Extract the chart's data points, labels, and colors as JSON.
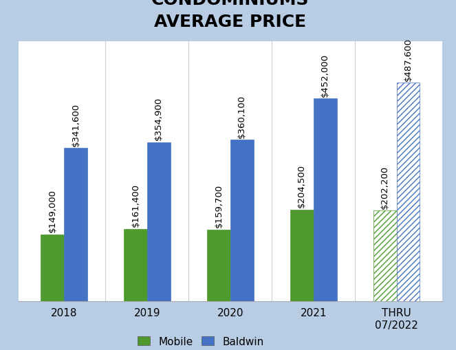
{
  "title": "CONDOMINIUMS\nAVERAGE PRICE",
  "categories": [
    "2018",
    "2019",
    "2020",
    "2021",
    "THRU\n07/2022"
  ],
  "mobile_values": [
    149000,
    161400,
    159700,
    204500,
    202200
  ],
  "baldwin_values": [
    341600,
    354900,
    360100,
    452000,
    487600
  ],
  "mobile_labels": [
    "$149,000",
    "$161,400",
    "$159,700",
    "$204,500",
    "$202,200"
  ],
  "baldwin_labels": [
    "$341,600",
    "$354,900",
    "$360,100",
    "$452,000",
    "$487,600"
  ],
  "mobile_color": "#4e9a2e",
  "mobile_hatch_color": "#c5e8a0",
  "baldwin_color": "#4472c4",
  "baldwin_hatch_color": "#aec6f0",
  "background_color": "#ffffff",
  "border_color": "#b8cce4",
  "ylim": [
    0,
    580000
  ],
  "bar_width": 0.28,
  "title_fontsize": 18,
  "label_fontsize": 9.5,
  "tick_fontsize": 11,
  "legend_fontsize": 11
}
